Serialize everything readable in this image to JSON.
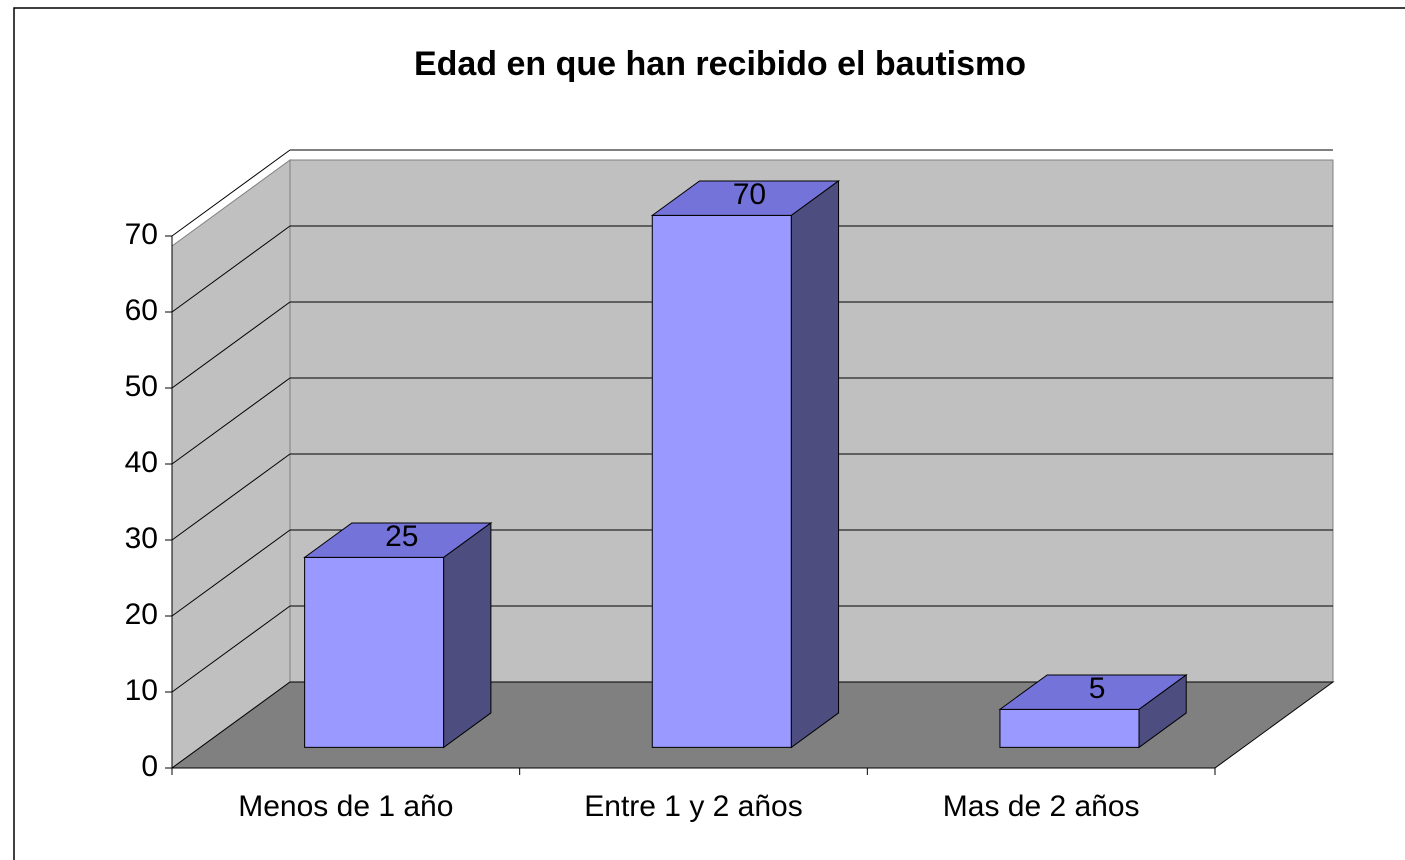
{
  "chart_data": {
    "type": "bar3d",
    "title": "Edad en que han recibido el bautismo",
    "categories": [
      "Menos de 1 año",
      "Entre 1 y 2 años",
      "Mas de 2 años"
    ],
    "values": [
      25,
      70,
      5
    ],
    "color": "#9999ff",
    "ylim": [
      0,
      70
    ],
    "yticks": [
      0,
      10,
      20,
      30,
      40,
      50,
      60,
      70
    ],
    "grid": true
  }
}
